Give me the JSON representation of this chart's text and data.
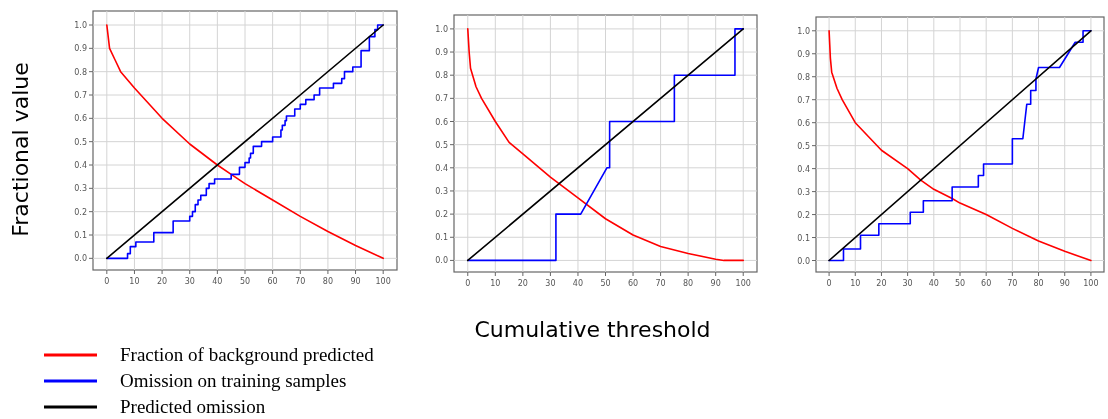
{
  "chart_data": [
    {
      "type": "line",
      "ylabel": "Fractional value",
      "xlim": [
        -5,
        105
      ],
      "ylim": [
        -0.05,
        1.06
      ],
      "xticks": [
        0,
        10,
        20,
        30,
        40,
        50,
        60,
        70,
        80,
        90,
        100
      ],
      "yticks": [
        {
          "value": 0,
          "label": "0.0"
        },
        {
          "value": 0.1,
          "label": "0.1"
        },
        {
          "value": 0.2,
          "label": "0.2"
        },
        {
          "value": 0.3,
          "label": "0.3"
        },
        {
          "value": 0.4,
          "label": "0.4"
        },
        {
          "value": 0.5,
          "label": "0.5"
        },
        {
          "value": 0.6,
          "label": "0.6"
        },
        {
          "value": 0.7,
          "label": "0.7"
        },
        {
          "value": 0.8,
          "label": "0.8"
        },
        {
          "value": 0.9,
          "label": "0.9"
        },
        {
          "value": 1,
          "label": "1.0"
        }
      ],
      "grid": true,
      "legend": "bottom",
      "series": [
        {
          "name": "Fraction of background predicted",
          "color": "#ff0000",
          "x": [
            0,
            1,
            3,
            5,
            10,
            20,
            30,
            40,
            45,
            50,
            60,
            70,
            80,
            90,
            100
          ],
          "values": [
            1,
            0.9,
            0.85,
            0.8,
            0.73,
            0.6,
            0.49,
            0.4,
            0.36,
            0.32,
            0.25,
            0.18,
            0.115,
            0.055,
            0
          ]
        },
        {
          "name": "Omission on training samples",
          "color": "#0000ff",
          "x": [
            0,
            7.5,
            7.5,
            8.5,
            8.5,
            10.5,
            10.5,
            17,
            17,
            24,
            24,
            30,
            30,
            31,
            31,
            32,
            32,
            33,
            33,
            34,
            34,
            36,
            36,
            37,
            37,
            39,
            39,
            45,
            45,
            48,
            48,
            50,
            50,
            51.5,
            51.5,
            52,
            52,
            53,
            53,
            56,
            56,
            60,
            60,
            63,
            63,
            63.5,
            63.5,
            64.5,
            64.5,
            65,
            65,
            68,
            68,
            70,
            70,
            72,
            72,
            75,
            75,
            77,
            77,
            82,
            82,
            85,
            85,
            86,
            86,
            89,
            89,
            92,
            92,
            95,
            95,
            97,
            97,
            98,
            98,
            100
          ],
          "values": [
            0,
            0,
            0.02,
            0.02,
            0.05,
            0.05,
            0.07,
            0.07,
            0.11,
            0.11,
            0.16,
            0.16,
            0.18,
            0.18,
            0.2,
            0.2,
            0.23,
            0.23,
            0.25,
            0.25,
            0.27,
            0.27,
            0.3,
            0.3,
            0.32,
            0.32,
            0.34,
            0.34,
            0.36,
            0.36,
            0.39,
            0.39,
            0.41,
            0.41,
            0.43,
            0.43,
            0.45,
            0.45,
            0.48,
            0.48,
            0.5,
            0.5,
            0.52,
            0.52,
            0.55,
            0.55,
            0.57,
            0.57,
            0.59,
            0.59,
            0.61,
            0.61,
            0.64,
            0.64,
            0.66,
            0.66,
            0.68,
            0.68,
            0.7,
            0.7,
            0.73,
            0.73,
            0.75,
            0.75,
            0.77,
            0.77,
            0.8,
            0.8,
            0.82,
            0.82,
            0.89,
            0.89,
            0.95,
            0.95,
            0.98,
            0.98,
            1,
            1
          ]
        },
        {
          "name": "Predicted omission",
          "color": "#000000",
          "x": [
            0,
            100
          ],
          "values": [
            0,
            1
          ]
        }
      ]
    },
    {
      "type": "line",
      "xlabel": "Cumulative threshold",
      "xlim": [
        -5,
        105
      ],
      "ylim": [
        -0.05,
        1.06
      ],
      "xticks": [
        0,
        10,
        20,
        30,
        40,
        50,
        60,
        70,
        80,
        90,
        100
      ],
      "yticks": [
        {
          "value": 0,
          "label": "0.0"
        },
        {
          "value": 0.1,
          "label": "0.1"
        },
        {
          "value": 0.2,
          "label": "0.2"
        },
        {
          "value": 0.3,
          "label": "0.3"
        },
        {
          "value": 0.4,
          "label": "0.4"
        },
        {
          "value": 0.5,
          "label": "0.5"
        },
        {
          "value": 0.6,
          "label": "0.6"
        },
        {
          "value": 0.7,
          "label": "0.7"
        },
        {
          "value": 0.8,
          "label": "0.8"
        },
        {
          "value": 0.9,
          "label": "0.9"
        },
        {
          "value": 1,
          "label": "1.0"
        }
      ],
      "grid": true,
      "series": [
        {
          "color": "#ff0000",
          "x": [
            0,
            0.5,
            1,
            3,
            5,
            10,
            15,
            20,
            30,
            40,
            50,
            60,
            70,
            80,
            90,
            93,
            100
          ],
          "values": [
            1,
            0.9,
            0.83,
            0.75,
            0.7,
            0.6,
            0.51,
            0.46,
            0.36,
            0.27,
            0.18,
            0.11,
            0.06,
            0.03,
            0.005,
            0,
            0
          ]
        },
        {
          "color": "#0000ff",
          "x": [
            0,
            32,
            32,
            41,
            50.5,
            51.5,
            51.5,
            75,
            75,
            97,
            97,
            100
          ],
          "values": [
            0,
            0,
            0.2,
            0.2,
            0.4,
            0.4,
            0.6,
            0.6,
            0.8,
            0.8,
            1,
            1
          ]
        },
        {
          "color": "#000000",
          "x": [
            0,
            100
          ],
          "values": [
            0,
            1
          ]
        }
      ]
    },
    {
      "type": "line",
      "xlim": [
        -5,
        105
      ],
      "ylim": [
        -0.05,
        1.06
      ],
      "xticks": [
        0,
        10,
        20,
        30,
        40,
        50,
        60,
        70,
        80,
        90,
        100
      ],
      "yticks": [
        {
          "value": 0,
          "label": "0.0"
        },
        {
          "value": 0.1,
          "label": "0.1"
        },
        {
          "value": 0.2,
          "label": "0.2"
        },
        {
          "value": 0.3,
          "label": "0.3"
        },
        {
          "value": 0.4,
          "label": "0.4"
        },
        {
          "value": 0.5,
          "label": "0.5"
        },
        {
          "value": 0.6,
          "label": "0.6"
        },
        {
          "value": 0.7,
          "label": "0.7"
        },
        {
          "value": 0.8,
          "label": "0.8"
        },
        {
          "value": 0.9,
          "label": "0.9"
        },
        {
          "value": 1,
          "label": "1.0"
        }
      ],
      "grid": true,
      "series": [
        {
          "color": "#ff0000",
          "x": [
            0,
            0.5,
            1,
            3,
            5,
            10,
            20,
            30,
            35,
            40,
            47,
            50,
            60,
            70,
            80,
            90,
            100
          ],
          "values": [
            1,
            0.88,
            0.82,
            0.75,
            0.7,
            0.6,
            0.48,
            0.4,
            0.35,
            0.31,
            0.27,
            0.25,
            0.2,
            0.14,
            0.085,
            0.04,
            0
          ]
        },
        {
          "color": "#0000ff",
          "x": [
            0,
            5.5,
            5.5,
            12,
            12,
            19,
            19,
            31,
            31,
            36,
            36,
            47,
            47,
            57,
            57,
            59,
            59,
            70,
            70,
            74,
            74.5,
            75,
            75.5,
            76,
            77,
            77,
            79,
            79,
            80,
            88,
            94,
            97,
            97,
            100
          ],
          "values": [
            0,
            0,
            0.05,
            0.05,
            0.11,
            0.11,
            0.16,
            0.16,
            0.21,
            0.21,
            0.26,
            0.26,
            0.32,
            0.32,
            0.37,
            0.37,
            0.42,
            0.42,
            0.53,
            0.53,
            0.58,
            0.63,
            0.68,
            0.68,
            0.68,
            0.74,
            0.74,
            0.79,
            0.84,
            0.84,
            0.95,
            0.95,
            1,
            1
          ]
        },
        {
          "color": "#000000",
          "x": [
            0,
            100
          ],
          "values": [
            0,
            1
          ]
        }
      ]
    }
  ]
}
